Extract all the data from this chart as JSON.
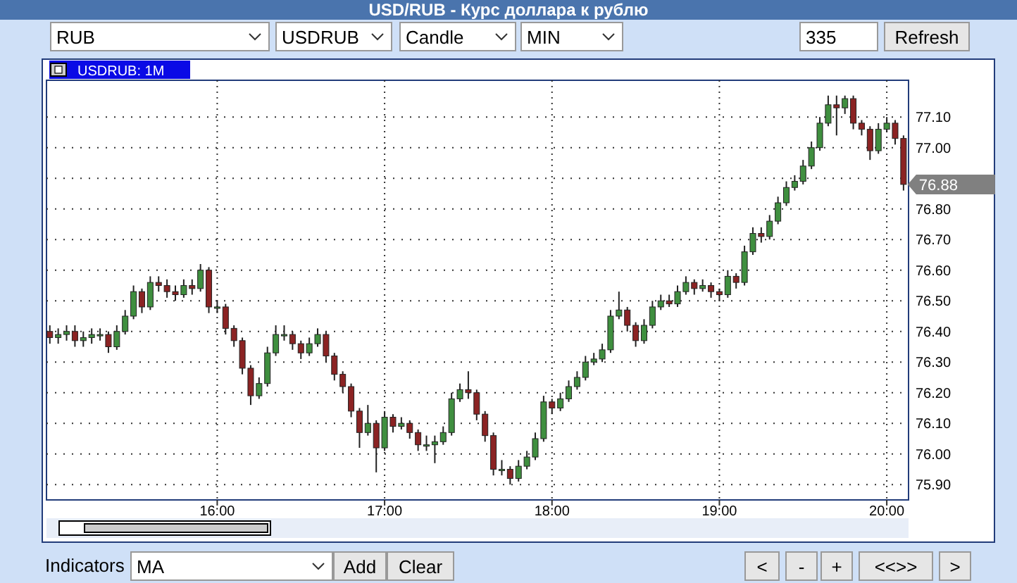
{
  "chart_data": {
    "type": "candlestick",
    "title": "USD/RUB - Курс доллара к рублю",
    "subtitle": "USDRUB: 1M",
    "x": [
      15,
      15.05,
      15.1,
      15.15,
      15.2,
      15.25,
      15.3,
      15.35,
      15.4,
      15.45,
      15.5,
      15.55,
      15.6,
      15.65,
      15.7,
      15.75,
      15.8,
      15.85,
      15.9,
      15.95,
      16,
      16.05,
      16.1,
      16.15,
      16.2,
      16.25,
      16.3,
      16.35,
      16.4,
      16.45,
      16.5,
      16.55,
      16.6,
      16.65,
      16.7,
      16.75,
      16.8,
      16.85,
      16.9,
      16.95,
      17,
      17.05,
      17.1,
      17.15,
      17.2,
      17.25,
      17.3,
      17.35,
      17.4,
      17.45,
      17.5,
      17.55,
      17.6,
      17.65,
      17.7,
      17.75,
      17.8,
      17.85,
      17.9,
      17.95,
      18,
      18.05,
      18.1,
      18.15,
      18.2,
      18.25,
      18.3,
      18.35,
      18.4,
      18.45,
      18.5,
      18.55,
      18.6,
      18.65,
      18.7,
      18.75,
      18.8,
      18.85,
      18.9,
      18.95,
      19,
      19.05,
      19.1,
      19.15,
      19.2,
      19.25,
      19.3,
      19.35,
      19.4,
      19.45,
      19.5,
      19.55,
      19.6,
      19.65,
      19.7,
      19.75,
      19.8,
      19.85,
      19.9,
      19.95,
      20,
      20.05,
      20.1
    ],
    "ohlc": [
      [
        76.4,
        76.42,
        76.36,
        76.38
      ],
      [
        76.38,
        76.41,
        76.36,
        76.39
      ],
      [
        76.39,
        76.42,
        76.37,
        76.4
      ],
      [
        76.4,
        76.42,
        76.35,
        76.37
      ],
      [
        76.37,
        76.4,
        76.35,
        76.38
      ],
      [
        76.38,
        76.41,
        76.36,
        76.39
      ],
      [
        76.39,
        76.41,
        76.37,
        76.39
      ],
      [
        76.39,
        76.4,
        76.33,
        76.35
      ],
      [
        76.35,
        76.42,
        76.34,
        76.4
      ],
      [
        76.4,
        76.47,
        76.39,
        76.45
      ],
      [
        76.45,
        76.55,
        76.44,
        76.53
      ],
      [
        76.53,
        76.54,
        76.46,
        76.48
      ],
      [
        76.48,
        76.58,
        76.47,
        76.56
      ],
      [
        76.56,
        76.58,
        76.53,
        76.55
      ],
      [
        76.55,
        76.57,
        76.51,
        76.53
      ],
      [
        76.53,
        76.55,
        76.5,
        76.52
      ],
      [
        76.52,
        76.57,
        76.51,
        76.55
      ],
      [
        76.55,
        76.57,
        76.52,
        76.54
      ],
      [
        76.54,
        76.62,
        76.53,
        76.6
      ],
      [
        76.6,
        76.61,
        76.46,
        76.48
      ],
      [
        76.48,
        76.5,
        76.46,
        76.48
      ],
      [
        76.48,
        76.49,
        76.39,
        76.41
      ],
      [
        76.41,
        76.42,
        76.35,
        76.37
      ],
      [
        76.37,
        76.38,
        76.26,
        76.28
      ],
      [
        76.28,
        76.29,
        76.16,
        76.19
      ],
      [
        76.19,
        76.25,
        76.18,
        76.23
      ],
      [
        76.23,
        76.35,
        76.22,
        76.33
      ],
      [
        76.33,
        76.42,
        76.32,
        76.39
      ],
      [
        76.39,
        76.42,
        76.37,
        76.39
      ],
      [
        76.39,
        76.4,
        76.34,
        76.36
      ],
      [
        76.36,
        76.37,
        76.31,
        76.33
      ],
      [
        76.33,
        76.38,
        76.32,
        76.36
      ],
      [
        76.36,
        76.41,
        76.35,
        76.39
      ],
      [
        76.39,
        76.4,
        76.3,
        76.32
      ],
      [
        76.32,
        76.33,
        76.24,
        76.26
      ],
      [
        76.26,
        76.27,
        76.2,
        76.22
      ],
      [
        76.22,
        76.23,
        76.12,
        76.14
      ],
      [
        76.14,
        76.15,
        76.02,
        76.07
      ],
      [
        76.07,
        76.16,
        76.06,
        76.1
      ],
      [
        76.1,
        76.11,
        75.94,
        76.02
      ],
      [
        76.02,
        76.14,
        76.01,
        76.12
      ],
      [
        76.12,
        76.13,
        76.07,
        76.09
      ],
      [
        76.09,
        76.12,
        76.08,
        76.1
      ],
      [
        76.1,
        76.11,
        76.05,
        76.07
      ],
      [
        76.07,
        76.08,
        76.01,
        76.03
      ],
      [
        76.03,
        76.06,
        76.01,
        76.03
      ],
      [
        76.03,
        76.06,
        75.97,
        76.04
      ],
      [
        76.04,
        76.09,
        76.03,
        76.07
      ],
      [
        76.07,
        76.2,
        76.06,
        76.18
      ],
      [
        76.18,
        76.23,
        76.17,
        76.21
      ],
      [
        76.21,
        76.27,
        76.18,
        76.2
      ],
      [
        76.2,
        76.21,
        76.11,
        76.13
      ],
      [
        76.13,
        76.14,
        76.04,
        76.06
      ],
      [
        76.06,
        76.07,
        75.93,
        75.95
      ],
      [
        75.95,
        75.98,
        75.93,
        75.95
      ],
      [
        75.95,
        75.96,
        75.9,
        75.92
      ],
      [
        75.92,
        75.98,
        75.91,
        75.96
      ],
      [
        75.96,
        76.01,
        75.95,
        75.99
      ],
      [
        75.99,
        76.07,
        75.98,
        76.05
      ],
      [
        76.05,
        76.19,
        76.04,
        76.17
      ],
      [
        76.17,
        76.18,
        76.13,
        76.15
      ],
      [
        76.15,
        76.2,
        76.14,
        76.18
      ],
      [
        76.18,
        76.24,
        76.17,
        76.22
      ],
      [
        76.22,
        76.27,
        76.21,
        76.25
      ],
      [
        76.25,
        76.32,
        76.24,
        76.3
      ],
      [
        76.3,
        76.33,
        76.29,
        76.31
      ],
      [
        76.31,
        76.36,
        76.3,
        76.34
      ],
      [
        76.34,
        76.47,
        76.33,
        76.45
      ],
      [
        76.45,
        76.53,
        76.44,
        76.47
      ],
      [
        76.47,
        76.48,
        76.4,
        76.42
      ],
      [
        76.42,
        76.43,
        76.35,
        76.37
      ],
      [
        76.37,
        76.44,
        76.36,
        76.42
      ],
      [
        76.42,
        76.5,
        76.41,
        76.48
      ],
      [
        76.48,
        76.52,
        76.47,
        76.5
      ],
      [
        76.5,
        76.52,
        76.48,
        76.49
      ],
      [
        76.49,
        76.55,
        76.48,
        76.53
      ],
      [
        76.53,
        76.58,
        76.52,
        76.56
      ],
      [
        76.56,
        76.57,
        76.52,
        76.54
      ],
      [
        76.54,
        76.57,
        76.53,
        76.55
      ],
      [
        76.55,
        76.56,
        76.51,
        76.53
      ],
      [
        76.53,
        76.54,
        76.5,
        76.52
      ],
      [
        76.52,
        76.6,
        76.51,
        76.58
      ],
      [
        76.58,
        76.59,
        76.54,
        76.56
      ],
      [
        76.56,
        76.68,
        76.55,
        76.66
      ],
      [
        76.66,
        76.74,
        76.65,
        76.72
      ],
      [
        76.72,
        76.74,
        76.69,
        76.71
      ],
      [
        76.71,
        76.78,
        76.7,
        76.76
      ],
      [
        76.76,
        76.84,
        76.75,
        76.82
      ],
      [
        76.82,
        76.89,
        76.81,
        76.87
      ],
      [
        76.87,
        76.91,
        76.86,
        76.89
      ],
      [
        76.89,
        76.96,
        76.88,
        76.94
      ],
      [
        76.94,
        77.02,
        76.93,
        77.0
      ],
      [
        77.0,
        77.1,
        76.99,
        77.08
      ],
      [
        77.08,
        77.17,
        77.07,
        77.14
      ],
      [
        77.14,
        77.17,
        77.04,
        77.13
      ],
      [
        77.13,
        77.17,
        77.11,
        77.16
      ],
      [
        77.16,
        77.17,
        77.06,
        77.08
      ],
      [
        77.08,
        77.09,
        77.04,
        77.06
      ],
      [
        77.06,
        77.07,
        76.96,
        76.99
      ],
      [
        76.99,
        77.08,
        76.98,
        77.06
      ],
      [
        77.06,
        77.1,
        77.05,
        77.08
      ],
      [
        77.08,
        77.09,
        77.01,
        77.03
      ],
      [
        77.03,
        77.04,
        76.86,
        76.88
      ]
    ],
    "xlim": [
      14.98,
      20.13
    ],
    "ylim": [
      75.85,
      77.22
    ],
    "xticks": [
      {
        "value": 16,
        "label": "16:00"
      },
      {
        "value": 17,
        "label": "17:00"
      },
      {
        "value": 18,
        "label": "18:00"
      },
      {
        "value": 19,
        "label": "19:00"
      },
      {
        "value": 20,
        "label": "20:00"
      }
    ],
    "yticks": [
      {
        "value": 75.9,
        "label": "75.90"
      },
      {
        "value": 76,
        "label": "76.00"
      },
      {
        "value": 76.1,
        "label": "76.10"
      },
      {
        "value": 76.2,
        "label": "76.20"
      },
      {
        "value": 76.3,
        "label": "76.30"
      },
      {
        "value": 76.4,
        "label": "76.40"
      },
      {
        "value": 76.5,
        "label": "76.50"
      },
      {
        "value": 76.6,
        "label": "76.60"
      },
      {
        "value": 76.7,
        "label": "76.70"
      },
      {
        "value": 76.8,
        "label": "76.80"
      },
      {
        "value": 76.9,
        "label": null
      },
      {
        "value": 77,
        "label": "77.00"
      },
      {
        "value": 77.1,
        "label": "77.10"
      }
    ],
    "grid": true,
    "annotations": [
      {
        "text": "76.88",
        "x": 20.1,
        "y": 76.88
      },
      "RUB",
      "USDRUB",
      "Candle",
      "MIN",
      "335",
      "Refresh",
      "Indicators",
      "MA",
      "Add",
      "Clear",
      "<",
      "-",
      "+",
      "<<>>",
      ">"
    ]
  }
}
